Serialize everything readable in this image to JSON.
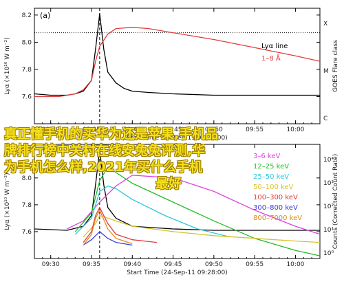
{
  "chart_data": [
    {
      "type": "line",
      "panel_label": "(a)",
      "ylabel": "Lyα (×10¹⁰ W m⁻²)",
      "y2label": "GOES Flare class",
      "xlabel": "Start Time (24-Sep-11 09:28:00)",
      "x_ticks": [
        "09:30",
        "09:35",
        "09:40",
        "09:45",
        "09:50",
        "09:55",
        "10:00"
      ],
      "xlim": [
        "09:28",
        "10:03"
      ],
      "ylim": [
        7.4,
        8.25
      ],
      "y_ticks": [
        "7.6",
        "7.8",
        "8.0",
        "8.2"
      ],
      "y2_ticks": [
        "X",
        "M",
        "C"
      ],
      "dotted_hline": 8.07,
      "vline_time": "09:36",
      "legend_title": "Lyα line",
      "legend_subtitle": "1–8 Å",
      "colors": {
        "lya": "#000000",
        "goes": "#e23b3b"
      },
      "series": [
        {
          "name": "Lyα line",
          "x": [
            "09:28",
            "09:30",
            "09:32",
            "09:33",
            "09:34",
            "09:35",
            "09:35.5",
            "09:36",
            "09:36.5",
            "09:37",
            "09:38",
            "09:39",
            "09:40",
            "09:42",
            "09:45",
            "09:50",
            "09:55",
            "10:00",
            "10:03"
          ],
          "values": [
            7.62,
            7.61,
            7.61,
            7.62,
            7.64,
            7.72,
            7.95,
            8.21,
            7.95,
            7.78,
            7.7,
            7.66,
            7.64,
            7.63,
            7.62,
            7.61,
            7.61,
            7.61,
            7.61
          ]
        },
        {
          "name": "1–8 Å",
          "x": [
            "09:28",
            "09:31",
            "09:33",
            "09:34",
            "09:35",
            "09:35.5",
            "09:36",
            "09:37",
            "09:38",
            "09:40",
            "09:42",
            "09:45",
            "09:50",
            "09:55",
            "10:00",
            "10:03"
          ],
          "values": [
            7.6,
            7.6,
            7.62,
            7.65,
            7.72,
            7.86,
            7.97,
            8.06,
            8.1,
            8.11,
            8.1,
            8.07,
            8.02,
            7.96,
            7.9,
            7.86
          ]
        }
      ]
    },
    {
      "type": "line",
      "panel_label": "(b)",
      "ylabel": "Lyα (×10¹⁰ W m⁻²)",
      "y2label": "Counts (Corrected Count Rate)",
      "xlabel": "Start Time (24-Sep-11 09:28:00)",
      "x_ticks": [
        "09:30",
        "09:35",
        "09:40",
        "09:45",
        "09:50",
        "09:55",
        "10:00"
      ],
      "xlim": [
        "09:28",
        "10:03"
      ],
      "ylim": [
        7.4,
        8.25
      ],
      "y_ticks": [
        "7.6",
        "7.8",
        "8.0"
      ],
      "y2_ticks": [
        "10⁴",
        "10³",
        "10²",
        "10¹",
        "10⁰"
      ],
      "vline_time": "09:36",
      "legend": [
        {
          "label": "3–6 keV",
          "color": "#e040e0"
        },
        {
          "label": "12–25 keV",
          "color": "#22bb22"
        },
        {
          "label": "25–50 keV",
          "color": "#2dc7d8"
        },
        {
          "label": "50–100 keV",
          "color": "#d8c22a"
        },
        {
          "label": "100–300 keV",
          "color": "#e23b3b"
        },
        {
          "label": "300–800 keV",
          "color": "#3a3ad8"
        },
        {
          "label": "800–7000 keV",
          "color": "#e08a1a"
        }
      ],
      "series": [
        {
          "name": "Lyα line",
          "x": [
            "09:28",
            "09:32",
            "09:34",
            "09:35",
            "09:35.5",
            "09:36",
            "09:36.5",
            "09:37",
            "09:38",
            "09:40",
            "09:45",
            "09:50",
            "10:00",
            "10:03"
          ],
          "values": [
            7.62,
            7.61,
            7.64,
            7.72,
            7.95,
            8.21,
            7.95,
            7.78,
            7.7,
            7.64,
            7.62,
            7.61,
            7.61,
            7.61
          ]
        },
        {
          "name": "3–6 keV",
          "x": [
            "09:32",
            "09:34",
            "09:36",
            "09:38",
            "09:40",
            "09:45",
            "09:50",
            "09:55",
            "10:00",
            "10:03"
          ],
          "values": [
            7.62,
            7.68,
            7.82,
            7.94,
            8.02,
            8.0,
            7.9,
            7.76,
            7.64,
            7.58
          ]
        },
        {
          "name": "12–25 keV",
          "x": [
            "09:33",
            "09:35",
            "09:36",
            "09:37",
            "09:38",
            "09:40",
            "09:45",
            "09:50",
            "09:55",
            "10:00",
            "10:03"
          ],
          "values": [
            7.6,
            7.74,
            7.98,
            8.08,
            8.04,
            7.96,
            7.82,
            7.68,
            7.55,
            7.46,
            7.42
          ]
        },
        {
          "name": "25–50 keV",
          "x": [
            "09:33",
            "09:35",
            "09:36",
            "09:37",
            "09:38",
            "09:40",
            "09:44",
            "09:48",
            "09:52"
          ],
          "values": [
            7.58,
            7.7,
            7.9,
            7.94,
            7.92,
            7.84,
            7.72,
            7.62,
            7.56
          ]
        },
        {
          "name": "50–100 keV",
          "x": [
            "09:34",
            "09:35.5",
            "09:36",
            "09:37",
            "09:40",
            "09:45",
            "09:50",
            "09:55",
            "10:00",
            "10:03"
          ],
          "values": [
            7.56,
            7.66,
            7.72,
            7.7,
            7.64,
            7.6,
            7.57,
            7.55,
            7.53,
            7.52
          ]
        },
        {
          "name": "100–300 keV",
          "x": [
            "09:34",
            "09:35",
            "09:35.5",
            "09:36",
            "09:37",
            "09:38",
            "09:40",
            "09:43"
          ],
          "values": [
            7.52,
            7.6,
            7.72,
            7.78,
            7.66,
            7.58,
            7.54,
            7.52
          ]
        },
        {
          "name": "300–800 keV",
          "x": [
            "09:34",
            "09:35",
            "09:36",
            "09:37",
            "09:38",
            "09:40"
          ],
          "values": [
            7.5,
            7.54,
            7.6,
            7.55,
            7.52,
            7.5
          ]
        },
        {
          "name": "800–7000 keV",
          "x": [
            "09:34",
            "09:35",
            "09:35.5",
            "09:36",
            "09:37",
            "09:38",
            "09:40"
          ],
          "values": [
            7.5,
            7.58,
            7.7,
            7.76,
            7.62,
            7.55,
            7.51
          ]
        }
      ]
    }
  ],
  "overlay_text": {
    "line1": "真正懂手机的买华为还是苹果,手机品",
    "line2": "牌排行榜中关村在线安兔兔评测,华",
    "line3": "为手机怎么样,2021年买什么手机",
    "line4": "最好"
  }
}
